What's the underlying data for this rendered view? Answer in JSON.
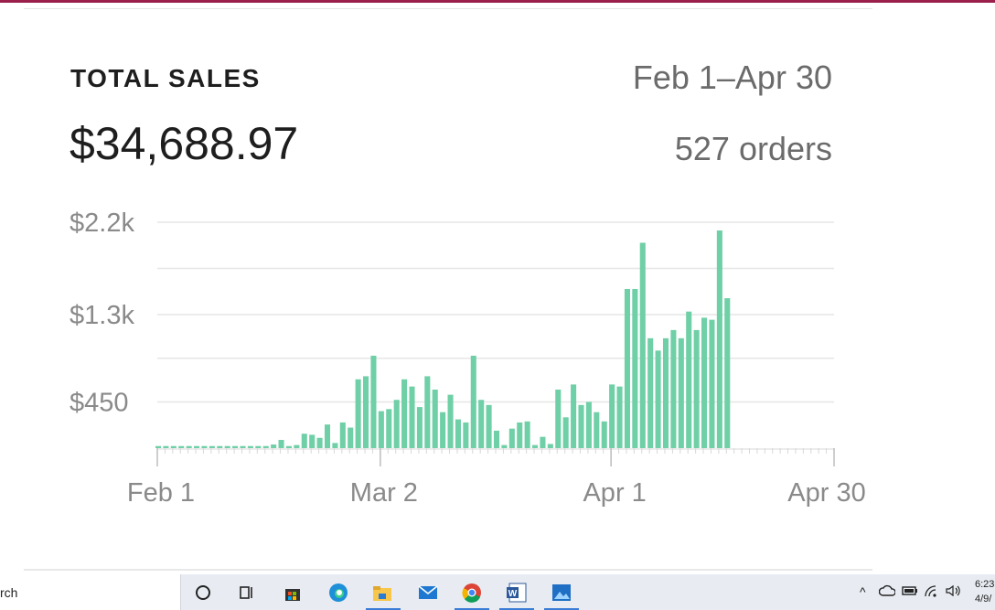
{
  "card": {
    "title": "TOTAL SALES",
    "total": "$34,688.97",
    "date_range": "Feb 1–Apr 30",
    "orders": "527 orders"
  },
  "chart_data": {
    "type": "bar",
    "color": "#6fcfa6",
    "x_tick_labels": [
      "Feb 1",
      "Mar 2",
      "Apr 1",
      "Apr 30"
    ],
    "y_tick_labels": [
      "$2.2k",
      "$1.3k",
      "$450"
    ],
    "y_ticks": [
      2200,
      1300,
      450
    ],
    "ylim": [
      0,
      2200
    ],
    "grid": true,
    "values": [
      20,
      20,
      20,
      20,
      20,
      20,
      20,
      20,
      20,
      20,
      20,
      20,
      20,
      20,
      20,
      35,
      80,
      20,
      30,
      140,
      130,
      100,
      230,
      50,
      250,
      200,
      670,
      700,
      900,
      360,
      380,
      470,
      670,
      600,
      400,
      700,
      570,
      350,
      520,
      280,
      250,
      900,
      470,
      420,
      170,
      30,
      190,
      250,
      260,
      30,
      110,
      40,
      570,
      300,
      620,
      420,
      450,
      350,
      260,
      620,
      600,
      1550,
      1550,
      2000,
      1070,
      950,
      1070,
      1150,
      1070,
      1330,
      1150,
      1270,
      1250,
      2120,
      1460
    ]
  },
  "taskbar": {
    "search_text": "rch",
    "clock_time": "6:23",
    "clock_date": "4/9/"
  },
  "colors": {
    "accent_bar": "#9a1f4b",
    "bar_fill": "#6fcfa6"
  }
}
